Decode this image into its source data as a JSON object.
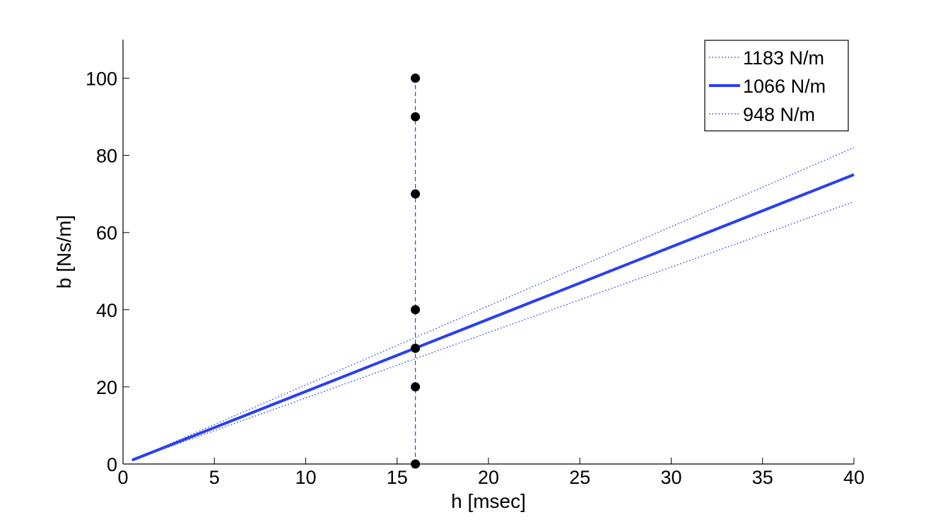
{
  "chart_data": {
    "type": "line",
    "title": "",
    "xlabel": "h [msec]",
    "ylabel": "b [Ns/m]",
    "xlim": [
      0,
      40
    ],
    "ylim": [
      0,
      110
    ],
    "xticks": [
      0,
      5,
      10,
      15,
      20,
      25,
      30,
      35,
      40
    ],
    "yticks": [
      0,
      20,
      40,
      60,
      80,
      100
    ],
    "grid": false,
    "legend_position": "top-right",
    "series": [
      {
        "name": "1183 N/m",
        "style": "dotted",
        "color": "#2a3ff0",
        "x": [
          0.5,
          40
        ],
        "y": [
          1.0,
          82.0
        ]
      },
      {
        "name": "1066 N/m",
        "style": "solid",
        "color": "#2a3ff0",
        "x": [
          0.5,
          40
        ],
        "y": [
          1.0,
          75.0
        ]
      },
      {
        "name": "948 N/m",
        "style": "dotted",
        "color": "#2a3ff0",
        "x": [
          0.5,
          40
        ],
        "y": [
          1.0,
          68.0
        ]
      }
    ],
    "reference_line": {
      "style": "dashed",
      "color": "#2a3ff0",
      "x": 16,
      "y_range": [
        0,
        100
      ]
    },
    "points": {
      "color": "#000000",
      "x": [
        16,
        16,
        16,
        16,
        16,
        16,
        16
      ],
      "y": [
        0,
        20,
        30,
        40,
        70,
        90,
        100
      ]
    }
  }
}
